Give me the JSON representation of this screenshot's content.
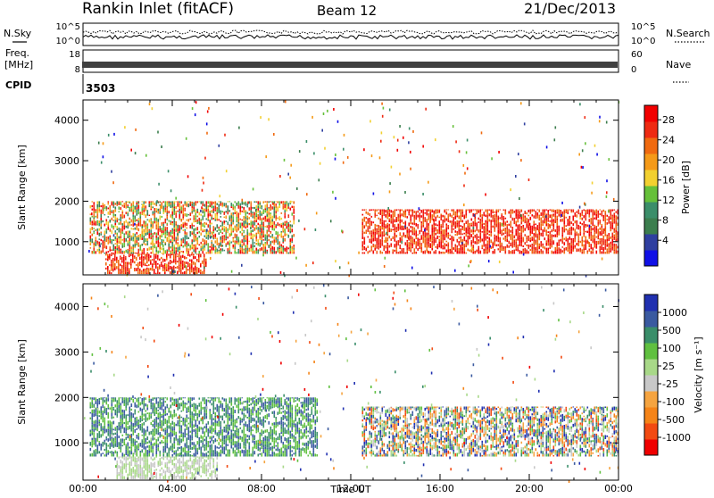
{
  "header": {
    "station": "Rankin Inlet (fitACF)",
    "beam": "Beam 12",
    "date": "21/Dec/2013"
  },
  "noise_panel": {
    "left_label": "N.Sky",
    "right_label": "N.Search",
    "left_ticks": [
      "10^5",
      "10^0"
    ],
    "right_ticks": [
      "10^5",
      "10^0"
    ]
  },
  "freq_panel": {
    "left_label_1": "Freq.",
    "left_label_2": "[MHz]",
    "right_label": "Nave",
    "left_ticks": [
      "18",
      "8"
    ],
    "right_ticks": [
      "60",
      "0"
    ]
  },
  "cpid": {
    "label": "CPID",
    "value": "3503"
  },
  "colors": {
    "power": [
      "#1010e6",
      "#2f3fa0",
      "#3c7e4e",
      "#3b8e6a",
      "#66c03a",
      "#f2d030",
      "#f59a18",
      "#f06a10",
      "#ee2a12",
      "#f20000"
    ],
    "velocity": [
      "#f00000",
      "#f24a12",
      "#f58418",
      "#f5a440",
      "#c8c8c8",
      "#a8d888",
      "#60c040",
      "#3a8e6a",
      "#3a5aa0",
      "#2030b0"
    ]
  },
  "chart_data": [
    {
      "type": "heatmap",
      "title": "Power",
      "ylabel": "Slant Range [km]",
      "xlabel": "",
      "xlim": [
        "00:00",
        "24:00"
      ],
      "ylim": [
        180,
        4500
      ],
      "x_ticks": [
        "00:00",
        "04:00",
        "08:00",
        "12:00",
        "16:00",
        "20:00",
        "00:00"
      ],
      "y_ticks": [
        1000,
        2000,
        3000,
        4000
      ],
      "colorbar": {
        "label": "Power [dB]",
        "ticks": [
          "28",
          "24",
          "20",
          "16",
          "12",
          "8",
          "4"
        ],
        "range": [
          0,
          30
        ]
      },
      "description_regions": [
        {
          "t_start": 0.3,
          "t_end": 9.5,
          "r_start": 700,
          "r_end": 2000,
          "level": "mixed 8-28"
        },
        {
          "t_start": 1.0,
          "t_end": 5.5,
          "r_start": 200,
          "r_end": 700,
          "level": "28"
        },
        {
          "t_start": 12.5,
          "t_end": 24.0,
          "r_start": 700,
          "r_end": 1800,
          "level": "24-28"
        }
      ]
    },
    {
      "type": "heatmap",
      "title": "Velocity",
      "ylabel": "Slant Range [km]",
      "xlabel": "Time UT",
      "xlim": [
        "00:00",
        "24:00"
      ],
      "ylim": [
        180,
        4500
      ],
      "x_ticks": [
        "00:00",
        "04:00",
        "08:00",
        "12:00",
        "16:00",
        "20:00",
        "00:00"
      ],
      "y_ticks": [
        1000,
        2000,
        3000,
        4000
      ],
      "colorbar": {
        "label": "Velocity [m s⁻¹]",
        "ticks": [
          "1000",
          "500",
          "100",
          "25",
          "-25",
          "-100",
          "-500",
          "-1000"
        ],
        "range": [
          -1000,
          1000
        ]
      },
      "description_regions": [
        {
          "t_start": 0.3,
          "t_end": 10.5,
          "r_start": 700,
          "r_end": 2000,
          "level": "100-500"
        },
        {
          "t_start": 1.5,
          "t_end": 6.0,
          "r_start": 200,
          "r_end": 700,
          "level": "-25 to 25"
        },
        {
          "t_start": 12.5,
          "t_end": 24.0,
          "r_start": 700,
          "r_end": 1800,
          "level": "mixed -500 to 500"
        }
      ]
    }
  ]
}
